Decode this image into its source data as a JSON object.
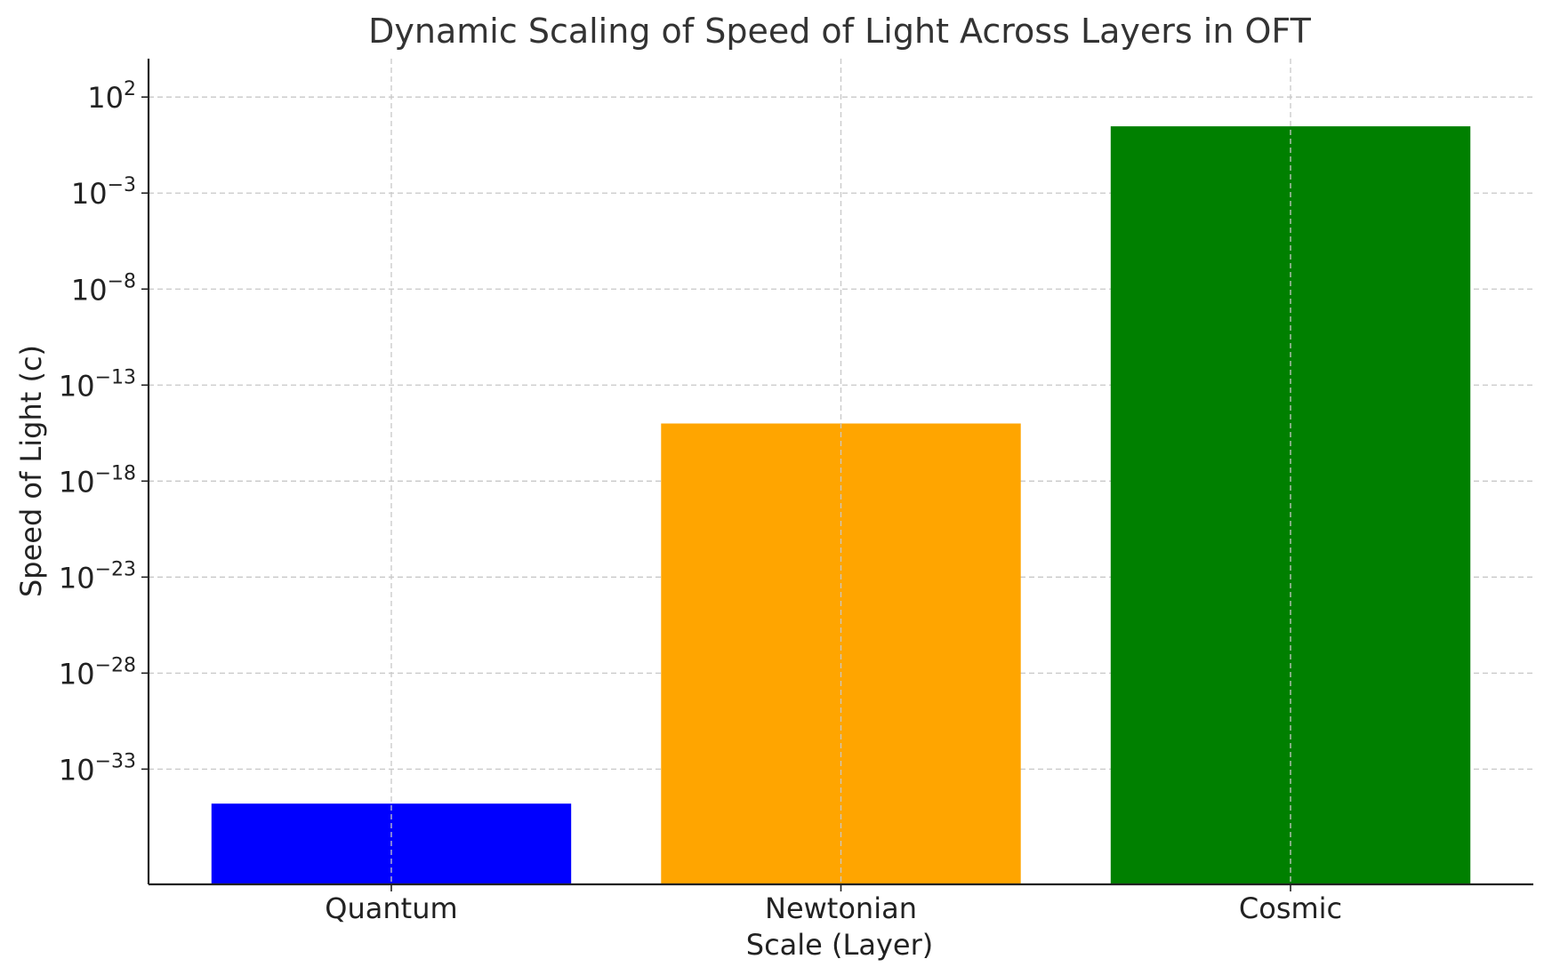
{
  "chart_data": {
    "type": "bar",
    "title": "Dynamic Scaling of Speed of Light Across Layers in OFT",
    "xlabel": "Scale (Layer)",
    "ylabel": "Speed of Light (c)",
    "yscale": "log",
    "ylim": [
      1e-39,
      10000.0
    ],
    "yticks": [
      {
        "exp": "2",
        "value": 100
      },
      {
        "exp": "−3",
        "value": 0.001
      },
      {
        "exp": "−8",
        "value": 1e-08
      },
      {
        "exp": "−13",
        "value": 1e-13
      },
      {
        "exp": "−18",
        "value": 1e-18
      },
      {
        "exp": "−23",
        "value": 1e-23
      },
      {
        "exp": "−28",
        "value": 1e-28
      },
      {
        "exp": "−33",
        "value": 1e-33
      }
    ],
    "categories": [
      "Quantum",
      "Newtonian",
      "Cosmic"
    ],
    "values": [
      1.6e-35,
      1e-15,
      3.0
    ],
    "colors": [
      "#0000ff",
      "#ffa500",
      "#008000"
    ],
    "grid": true,
    "legend": "none"
  }
}
